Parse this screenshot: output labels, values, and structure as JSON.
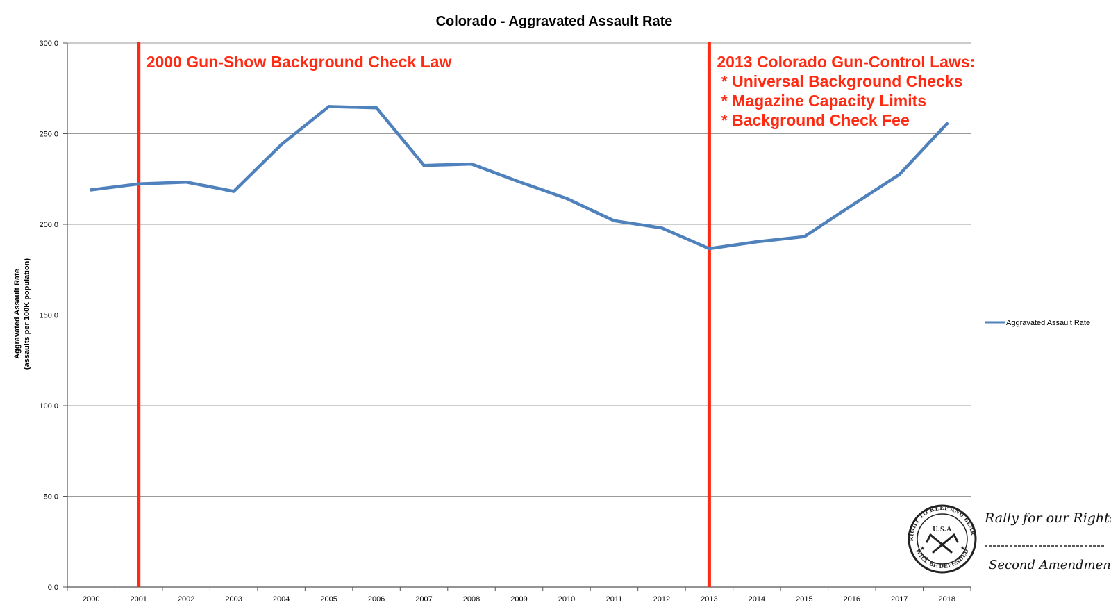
{
  "chart_data": {
    "type": "line",
    "title": "Colorado - Aggravated Assault Rate",
    "ylabel_line1": "Aggravated Assault Rate",
    "ylabel_line2": "(assaults per 100K population)",
    "xlabel": "",
    "ylim": [
      0,
      300
    ],
    "y_ticks": [
      "0.0",
      "50.0",
      "100.0",
      "150.0",
      "200.0",
      "250.0",
      "300.0"
    ],
    "y_tick_values": [
      0,
      50,
      100,
      150,
      200,
      250,
      300
    ],
    "categories": [
      "2000",
      "2001",
      "2002",
      "2003",
      "2004",
      "2005",
      "2006",
      "2007",
      "2008",
      "2009",
      "2010",
      "2011",
      "2012",
      "2013",
      "2014",
      "2015",
      "2016",
      "2017",
      "2018"
    ],
    "series": [
      {
        "name": "Aggravated Assault Rate",
        "color": "#4f81bd",
        "values": [
          219.0,
          222.3,
          223.3,
          218.2,
          244.0,
          265.0,
          264.3,
          232.5,
          233.3,
          223.5,
          214.3,
          202.0,
          198.0,
          186.6,
          190.4,
          193.2,
          210.5,
          227.5,
          255.5
        ]
      }
    ],
    "grid": true,
    "legend_position": "right",
    "annotations": [
      {
        "year": "2001",
        "color": "#ff2a12",
        "lines": [
          "2000 Gun-Show Background Check Law"
        ]
      },
      {
        "year": "2013",
        "color": "#ff2a12",
        "lines": [
          "2013 Colorado Gun-Control Laws:",
          " * Universal Background Checks",
          " * Magazine Capacity Limits",
          " * Background Check Fee"
        ]
      }
    ]
  },
  "branding": {
    "seal_top": "THE RIGHT TO KEEP AND BEAR ARMS",
    "seal_bottom": "WILL BE DEFENDED",
    "seal_center": "U.S.A",
    "line1": "Rally for our Rights",
    "line2": "Second Amendment"
  }
}
